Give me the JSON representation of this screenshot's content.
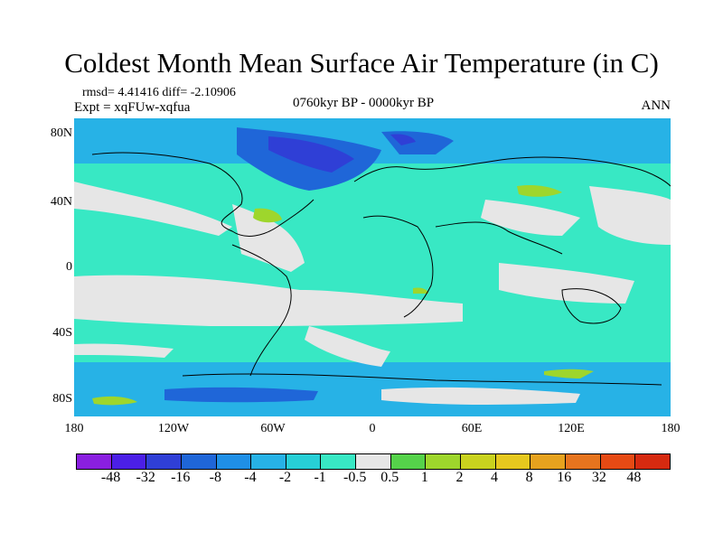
{
  "title": "Coldest Month Mean Surface Air Temperature (in C)",
  "stats": "rmsd= 4.41416 diff= -2.10906",
  "expt": "Expt = xqFUw-xqfua",
  "period": "0760kyr BP - 0000kyr BP",
  "season": "ANN",
  "map": {
    "y_labels": [
      "80N",
      "40N",
      "0",
      "40S",
      "80S"
    ],
    "x_labels": [
      "180",
      "120W",
      "60W",
      "0",
      "60E",
      "120E",
      "180"
    ]
  },
  "legend": {
    "labels": [
      "-48",
      "-32",
      "-16",
      "-8",
      "-4",
      "-2",
      "-1",
      "-0.5",
      "0.5",
      "1",
      "2",
      "4",
      "8",
      "16",
      "32",
      "48"
    ],
    "colors": [
      "#8a1fe0",
      "#4b1fe6",
      "#2f3fd6",
      "#1f66d8",
      "#1f8fe6",
      "#27b2e6",
      "#27cfd6",
      "#38e8c4",
      "#e6e6e6",
      "#55d24a",
      "#9ed62c",
      "#c9d21e",
      "#e6c81e",
      "#e6a21e",
      "#e6741e",
      "#e64a14",
      "#d62a10"
    ]
  }
}
